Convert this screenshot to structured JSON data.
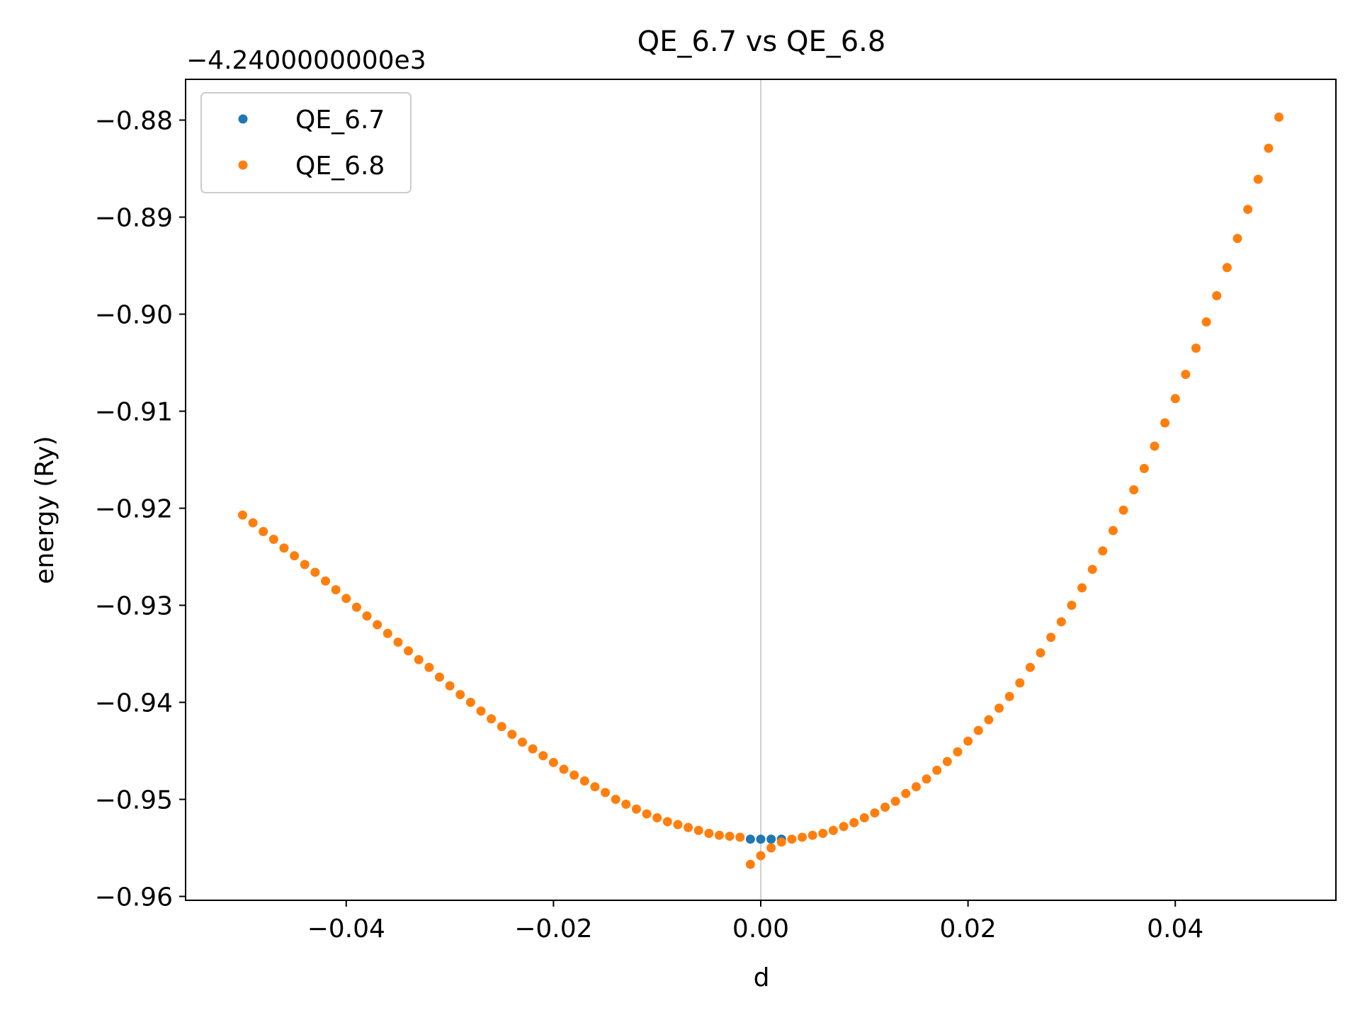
{
  "chart_data": {
    "type": "scatter",
    "title": "QE_6.7 vs QE_6.8",
    "xlabel": "d",
    "ylabel": "energy (Ry)",
    "offset_text": "−4.2400000000e3",
    "xlim": [
      -0.0555,
      0.0555
    ],
    "ylim": [
      -0.9604,
      -0.8758
    ],
    "xticks": [
      -0.04,
      -0.02,
      0.0,
      0.02,
      0.04
    ],
    "xtick_labels": [
      "−0.04",
      "−0.02",
      "0.00",
      "0.02",
      "0.04"
    ],
    "yticks": [
      -0.96,
      -0.95,
      -0.94,
      -0.93,
      -0.92,
      -0.91,
      -0.9,
      -0.89,
      -0.88
    ],
    "ytick_labels": [
      "−0.96",
      "−0.95",
      "−0.94",
      "−0.93",
      "−0.92",
      "−0.91",
      "−0.90",
      "−0.89",
      "−0.88"
    ],
    "vline_x": 0.0,
    "legend_position": "upper-left",
    "grid": false,
    "series": [
      {
        "name": "QE_6.7",
        "color": "#1f77b4",
        "points": [
          [
            -0.001,
            -0.9541
          ],
          [
            0.0,
            -0.9541
          ],
          [
            0.001,
            -0.9541
          ],
          [
            0.002,
            -0.9541
          ]
        ]
      },
      {
        "name": "QE_6.8",
        "color": "#ff7f0e",
        "points": [
          [
            -0.05,
            -0.9207
          ],
          [
            -0.049,
            -0.9215
          ],
          [
            -0.048,
            -0.9224
          ],
          [
            -0.047,
            -0.9232
          ],
          [
            -0.046,
            -0.9241
          ],
          [
            -0.045,
            -0.9249
          ],
          [
            -0.044,
            -0.9258
          ],
          [
            -0.043,
            -0.9266
          ],
          [
            -0.042,
            -0.9275
          ],
          [
            -0.041,
            -0.9284
          ],
          [
            -0.04,
            -0.9293
          ],
          [
            -0.039,
            -0.9302
          ],
          [
            -0.038,
            -0.9311
          ],
          [
            -0.037,
            -0.932
          ],
          [
            -0.036,
            -0.9329
          ],
          [
            -0.035,
            -0.9338
          ],
          [
            -0.034,
            -0.9347
          ],
          [
            -0.033,
            -0.9356
          ],
          [
            -0.032,
            -0.9364
          ],
          [
            -0.031,
            -0.9374
          ],
          [
            -0.03,
            -0.9383
          ],
          [
            -0.029,
            -0.9392
          ],
          [
            -0.028,
            -0.94
          ],
          [
            -0.027,
            -0.9409
          ],
          [
            -0.026,
            -0.9417
          ],
          [
            -0.025,
            -0.9425
          ],
          [
            -0.024,
            -0.9433
          ],
          [
            -0.023,
            -0.9441
          ],
          [
            -0.022,
            -0.9448
          ],
          [
            -0.021,
            -0.9455
          ],
          [
            -0.02,
            -0.9462
          ],
          [
            -0.019,
            -0.9469
          ],
          [
            -0.018,
            -0.9475
          ],
          [
            -0.017,
            -0.9481
          ],
          [
            -0.016,
            -0.9487
          ],
          [
            -0.015,
            -0.9493
          ],
          [
            -0.014,
            -0.95
          ],
          [
            -0.013,
            -0.9505
          ],
          [
            -0.012,
            -0.951
          ],
          [
            -0.011,
            -0.9515
          ],
          [
            -0.01,
            -0.9519
          ],
          [
            -0.009,
            -0.9523
          ],
          [
            -0.008,
            -0.9526
          ],
          [
            -0.007,
            -0.9529
          ],
          [
            -0.006,
            -0.9532
          ],
          [
            -0.005,
            -0.9535
          ],
          [
            -0.004,
            -0.9537
          ],
          [
            -0.003,
            -0.9538
          ],
          [
            -0.002,
            -0.9539
          ],
          [
            -0.001,
            -0.9567
          ],
          [
            0.0,
            -0.9558
          ],
          [
            0.001,
            -0.955
          ],
          [
            0.002,
            -0.9544
          ],
          [
            0.003,
            -0.9541
          ],
          [
            0.004,
            -0.9539
          ],
          [
            0.005,
            -0.9537
          ],
          [
            0.006,
            -0.9535
          ],
          [
            0.007,
            -0.9532
          ],
          [
            0.008,
            -0.9528
          ],
          [
            0.009,
            -0.9524
          ],
          [
            0.01,
            -0.9519
          ],
          [
            0.011,
            -0.9514
          ],
          [
            0.012,
            -0.9508
          ],
          [
            0.013,
            -0.9502
          ],
          [
            0.014,
            -0.9494
          ],
          [
            0.015,
            -0.9487
          ],
          [
            0.016,
            -0.9479
          ],
          [
            0.017,
            -0.947
          ],
          [
            0.018,
            -0.9461
          ],
          [
            0.019,
            -0.9451
          ],
          [
            0.02,
            -0.944
          ],
          [
            0.021,
            -0.9429
          ],
          [
            0.022,
            -0.9418
          ],
          [
            0.023,
            -0.9406
          ],
          [
            0.024,
            -0.9394
          ],
          [
            0.025,
            -0.938
          ],
          [
            0.026,
            -0.9364
          ],
          [
            0.027,
            -0.9349
          ],
          [
            0.028,
            -0.9333
          ],
          [
            0.029,
            -0.9317
          ],
          [
            0.03,
            -0.93
          ],
          [
            0.031,
            -0.9282
          ],
          [
            0.032,
            -0.9263
          ],
          [
            0.033,
            -0.9244
          ],
          [
            0.034,
            -0.9223
          ],
          [
            0.035,
            -0.9202
          ],
          [
            0.036,
            -0.9181
          ],
          [
            0.037,
            -0.9159
          ],
          [
            0.038,
            -0.9136
          ],
          [
            0.039,
            -0.9112
          ],
          [
            0.04,
            -0.9087
          ],
          [
            0.041,
            -0.9062
          ],
          [
            0.042,
            -0.9035
          ],
          [
            0.043,
            -0.9008
          ],
          [
            0.044,
            -0.8981
          ],
          [
            0.045,
            -0.8952
          ],
          [
            0.046,
            -0.8922
          ],
          [
            0.047,
            -0.8892
          ],
          [
            0.048,
            -0.8861
          ],
          [
            0.049,
            -0.8829
          ],
          [
            0.05,
            -0.8797
          ]
        ]
      }
    ]
  }
}
